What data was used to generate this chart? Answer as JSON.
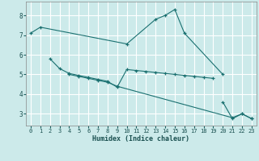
{
  "xlabel": "Humidex (Indice chaleur)",
  "bg_color": "#cceaea",
  "line_color": "#1a7070",
  "grid_color": "#ffffff",
  "xlim": [
    -0.5,
    23.5
  ],
  "ylim": [
    2.4,
    8.7
  ],
  "yticks": [
    3,
    4,
    5,
    6,
    7,
    8
  ],
  "xticks": [
    0,
    1,
    2,
    3,
    4,
    5,
    6,
    7,
    8,
    9,
    10,
    11,
    12,
    13,
    14,
    15,
    16,
    17,
    18,
    19,
    20,
    21,
    22,
    23
  ],
  "connected_series": [
    {
      "x": [
        0,
        1,
        10,
        13,
        14,
        15,
        16,
        20
      ],
      "y": [
        7.1,
        7.4,
        6.55,
        7.8,
        8.0,
        8.3,
        7.1,
        5.0
      ]
    },
    {
      "x": [
        2,
        3,
        4,
        5,
        6,
        7,
        8,
        9,
        10,
        11,
        12,
        13,
        14,
        15,
        16,
        17,
        18,
        19
      ],
      "y": [
        5.8,
        5.3,
        5.05,
        4.95,
        4.85,
        4.75,
        4.65,
        4.35,
        5.25,
        5.2,
        5.15,
        5.1,
        5.05,
        5.0,
        4.95,
        4.9,
        4.85,
        4.8
      ]
    },
    {
      "x": [
        4,
        5,
        6,
        7,
        8,
        9,
        21,
        22,
        23
      ],
      "y": [
        5.0,
        4.9,
        4.8,
        4.7,
        4.6,
        4.4,
        2.8,
        3.0,
        2.75
      ]
    },
    {
      "x": [
        20,
        21,
        22,
        23
      ],
      "y": [
        3.6,
        2.75,
        3.0,
        2.75
      ]
    }
  ]
}
